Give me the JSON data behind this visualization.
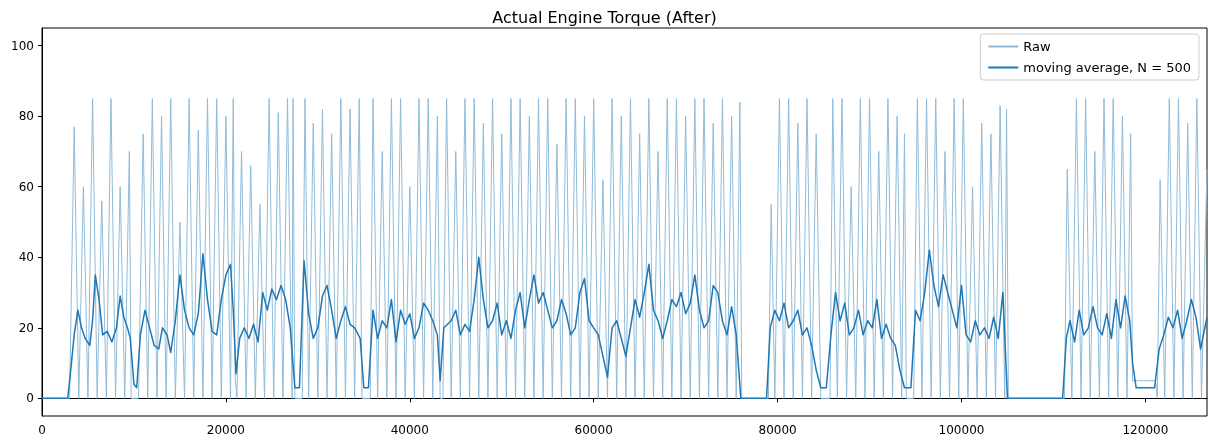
{
  "chart_data": {
    "type": "line",
    "title": "Actual Engine Torque (After)",
    "xlim": [
      0,
      126700
    ],
    "xticks": [
      0,
      20000,
      40000,
      60000,
      80000,
      100000,
      120000
    ],
    "ylim": [
      -5,
      105
    ],
    "yticks": [
      0,
      20,
      40,
      60,
      80,
      100
    ],
    "legend": "top right",
    "marker": "none",
    "line_style": "solid",
    "series": [
      {
        "name": "Raw",
        "color": "#8fbbd9",
        "x": [
          0,
          2900,
          3000,
          3500,
          4000,
          4500,
          5000,
          5500,
          6000,
          6500,
          7000,
          7500,
          8000,
          8500,
          9000,
          9500,
          9700,
          10400,
          10500,
          11000,
          11500,
          12000,
          12500,
          13000,
          13500,
          14000,
          14500,
          15000,
          15500,
          16000,
          16500,
          17000,
          17500,
          18000,
          18500,
          19000,
          19500,
          20000,
          20500,
          20800,
          21000,
          21200,
          21700,
          22200,
          22700,
          23200,
          23700,
          24200,
          24700,
          25200,
          25700,
          26200,
          26700,
          27200,
          27300,
          27500,
          28300,
          28600,
          29000,
          29500,
          30000,
          30500,
          31000,
          31500,
          32000,
          32500,
          33000,
          33500,
          34000,
          34500,
          34800,
          35700,
          36000,
          36500,
          37000,
          37500,
          38000,
          38500,
          39000,
          39500,
          40000,
          40500,
          41000,
          41500,
          42000,
          42500,
          43000,
          43300,
          43600,
          44000,
          44500,
          45000,
          45500,
          46000,
          46500,
          47000,
          47500,
          48000,
          48500,
          49000,
          49500,
          50000,
          50500,
          51000,
          51500,
          52000,
          52500,
          53000,
          53500,
          54000,
          54500,
          55000,
          55500,
          56000,
          56500,
          57000,
          57500,
          58000,
          58500,
          59000,
          59500,
          60000,
          60500,
          61000,
          61500,
          62000,
          62500,
          63000,
          63500,
          64000,
          64500,
          65000,
          65500,
          66000,
          66500,
          67000,
          67500,
          68000,
          68500,
          69000,
          69500,
          70000,
          70500,
          71000,
          71500,
          72000,
          72500,
          73000,
          73500,
          74000,
          74500,
          75000,
          75500,
          75900,
          76100,
          79000,
          79300,
          79700,
          80200,
          80700,
          81200,
          81700,
          82200,
          82700,
          83200,
          83700,
          84200,
          84700,
          85700,
          86000,
          86500,
          87000,
          87500,
          88000,
          88500,
          89000,
          89500,
          90000,
          90500,
          91000,
          91500,
          92000,
          92500,
          93000,
          93500,
          93800,
          94000,
          94800,
          95200,
          95700,
          96200,
          96700,
          97200,
          97700,
          98200,
          98700,
          99200,
          99700,
          100200,
          100700,
          101200,
          101700,
          102200,
          102700,
          103200,
          103700,
          104200,
          104700,
          104900,
          105100,
          111200,
          111500,
          112000,
          112500,
          113000,
          113500,
          114000,
          114500,
          115000,
          115500,
          116000,
          116500,
          117000,
          117500,
          118000,
          118400,
          118600,
          121100,
          121300,
          121600,
          122100,
          122600,
          123100,
          123600,
          124100,
          124600,
          125100,
          125600,
          126100,
          126700
        ],
        "values": [
          0,
          0,
          0,
          77,
          0,
          60,
          0,
          85,
          0,
          56,
          0,
          85,
          0,
          60,
          0,
          70,
          0,
          0,
          0,
          75,
          0,
          85,
          0,
          80,
          0,
          85,
          0,
          50,
          0,
          85,
          0,
          76,
          0,
          85,
          0,
          85,
          0,
          80,
          0,
          85,
          6,
          0,
          70,
          0,
          66,
          0,
          55,
          0,
          85,
          0,
          81,
          0,
          85,
          0,
          85,
          0,
          0,
          85,
          0,
          78,
          0,
          82,
          0,
          75,
          0,
          85,
          0,
          82,
          0,
          85,
          0,
          0,
          85,
          0,
          70,
          0,
          85,
          0,
          85,
          0,
          60,
          0,
          85,
          0,
          85,
          0,
          80,
          0,
          0,
          85,
          0,
          70,
          0,
          85,
          0,
          85,
          0,
          78,
          0,
          85,
          0,
          75,
          0,
          85,
          0,
          85,
          0,
          80,
          0,
          85,
          0,
          85,
          0,
          72,
          0,
          85,
          0,
          85,
          0,
          80,
          0,
          85,
          0,
          62,
          0,
          85,
          0,
          80,
          0,
          85,
          0,
          75,
          0,
          85,
          0,
          70,
          0,
          85,
          0,
          85,
          0,
          80,
          0,
          85,
          0,
          85,
          0,
          78,
          0,
          85,
          0,
          80,
          0,
          84,
          0,
          0,
          55,
          0,
          85,
          0,
          85,
          0,
          78,
          0,
          85,
          0,
          75,
          0,
          0,
          85,
          0,
          85,
          0,
          60,
          0,
          85,
          0,
          85,
          0,
          70,
          0,
          85,
          0,
          80,
          0,
          75,
          0,
          0,
          85,
          0,
          85,
          0,
          85,
          0,
          70,
          0,
          85,
          0,
          85,
          0,
          60,
          0,
          78,
          0,
          75,
          0,
          83,
          0,
          82,
          0,
          0,
          65,
          0,
          85,
          0,
          85,
          0,
          70,
          0,
          85,
          0,
          85,
          0,
          80,
          0,
          75,
          5,
          5,
          0,
          62,
          0,
          85,
          0,
          85,
          0,
          78,
          0,
          85,
          0,
          65
        ]
      },
      {
        "name": "moving average, N = 500",
        "color": "#1f77b4",
        "x": [
          0,
          2800,
          3200,
          3500,
          3900,
          4300,
          4700,
          5200,
          5500,
          5800,
          6200,
          6600,
          7100,
          7600,
          8100,
          8500,
          8900,
          9300,
          9600,
          10000,
          10300,
          10700,
          11200,
          11700,
          12200,
          12700,
          13100,
          13600,
          14000,
          14500,
          15000,
          15500,
          16000,
          16500,
          17000,
          17500,
          18000,
          18500,
          19000,
          19500,
          20000,
          20500,
          20800,
          21100,
          21500,
          22000,
          22500,
          23000,
          23500,
          24000,
          24500,
          25000,
          25500,
          26000,
          26500,
          27000,
          27500,
          28000,
          28500,
          29000,
          29500,
          30000,
          30500,
          31000,
          31500,
          32000,
          32500,
          33000,
          33500,
          34000,
          34600,
          35000,
          35500,
          36000,
          36500,
          37000,
          37500,
          38000,
          38500,
          39000,
          39500,
          40000,
          40500,
          41000,
          41500,
          42000,
          42500,
          43000,
          43300,
          43700,
          44500,
          45000,
          45500,
          46000,
          46500,
          47000,
          47500,
          48000,
          48500,
          49000,
          49500,
          50000,
          50500,
          51000,
          51500,
          52000,
          52500,
          53000,
          53500,
          54000,
          54500,
          55000,
          55500,
          56000,
          56500,
          57000,
          57500,
          58000,
          58500,
          59000,
          59500,
          60000,
          60500,
          61000,
          61500,
          62000,
          62500,
          63000,
          63500,
          64000,
          64500,
          65000,
          65500,
          66000,
          66500,
          67000,
          67500,
          68000,
          68500,
          69000,
          69500,
          70000,
          70500,
          71000,
          71500,
          72000,
          72500,
          73000,
          73500,
          74000,
          74500,
          75000,
          75500,
          76000,
          78800,
          79200,
          79700,
          80200,
          80700,
          81200,
          81700,
          82200,
          82700,
          83200,
          83700,
          84200,
          84700,
          85300,
          85800,
          86300,
          86800,
          87300,
          87800,
          88300,
          88800,
          89300,
          89800,
          90300,
          90800,
          91300,
          91800,
          92300,
          92800,
          93300,
          93800,
          94500,
          95000,
          95500,
          96000,
          96500,
          97000,
          97500,
          98000,
          98500,
          99000,
          99500,
          100000,
          100500,
          101000,
          101500,
          102000,
          102500,
          103000,
          103500,
          104000,
          104500,
          105000,
          111000,
          111400,
          111800,
          112300,
          112800,
          113300,
          113800,
          114300,
          114800,
          115300,
          115800,
          116300,
          116800,
          117300,
          117800,
          118300,
          118600,
          119000,
          120500,
          121000,
          121500,
          122000,
          122500,
          123000,
          123500,
          124000,
          124500,
          125000,
          125500,
          126000,
          126700
        ],
        "values": [
          0,
          0,
          10,
          18,
          25,
          20,
          17,
          15,
          22,
          35,
          28,
          18,
          19,
          16,
          20,
          29,
          23,
          20,
          17,
          4,
          3,
          18,
          25,
          20,
          15,
          14,
          20,
          18,
          13,
          22,
          35,
          25,
          20,
          18,
          24,
          41,
          28,
          19,
          18,
          28,
          35,
          38,
          25,
          7,
          17,
          20,
          17,
          21,
          16,
          30,
          25,
          31,
          28,
          32,
          28,
          20,
          3,
          3,
          39,
          24,
          17,
          20,
          29,
          32,
          25,
          17,
          22,
          26,
          21,
          20,
          17,
          3,
          3,
          25,
          17,
          22,
          20,
          28,
          16,
          25,
          21,
          24,
          17,
          20,
          27,
          25,
          22,
          18,
          5,
          20,
          22,
          25,
          18,
          21,
          19,
          28,
          40,
          28,
          20,
          22,
          27,
          18,
          22,
          17,
          25,
          30,
          20,
          28,
          35,
          27,
          30,
          25,
          20,
          22,
          28,
          24,
          18,
          20,
          30,
          34,
          22,
          20,
          18,
          12,
          6,
          20,
          22,
          17,
          12,
          20,
          28,
          23,
          30,
          38,
          25,
          22,
          17,
          22,
          28,
          26,
          30,
          24,
          27,
          35,
          25,
          20,
          22,
          32,
          30,
          22,
          18,
          26,
          18,
          0,
          0,
          20,
          25,
          22,
          27,
          20,
          22,
          25,
          18,
          20,
          15,
          8,
          3,
          3,
          18,
          30,
          22,
          27,
          18,
          20,
          25,
          18,
          22,
          20,
          28,
          17,
          21,
          17,
          15,
          8,
          3,
          3,
          25,
          22,
          30,
          42,
          32,
          26,
          35,
          30,
          25,
          20,
          32,
          18,
          16,
          22,
          18,
          20,
          17,
          23,
          17,
          30,
          0,
          0,
          17,
          22,
          16,
          25,
          18,
          20,
          26,
          20,
          18,
          24,
          17,
          28,
          20,
          29,
          22,
          10,
          3,
          3,
          3,
          14,
          18,
          23,
          20,
          25,
          17,
          22,
          28,
          23,
          14,
          23
        ]
      }
    ]
  }
}
